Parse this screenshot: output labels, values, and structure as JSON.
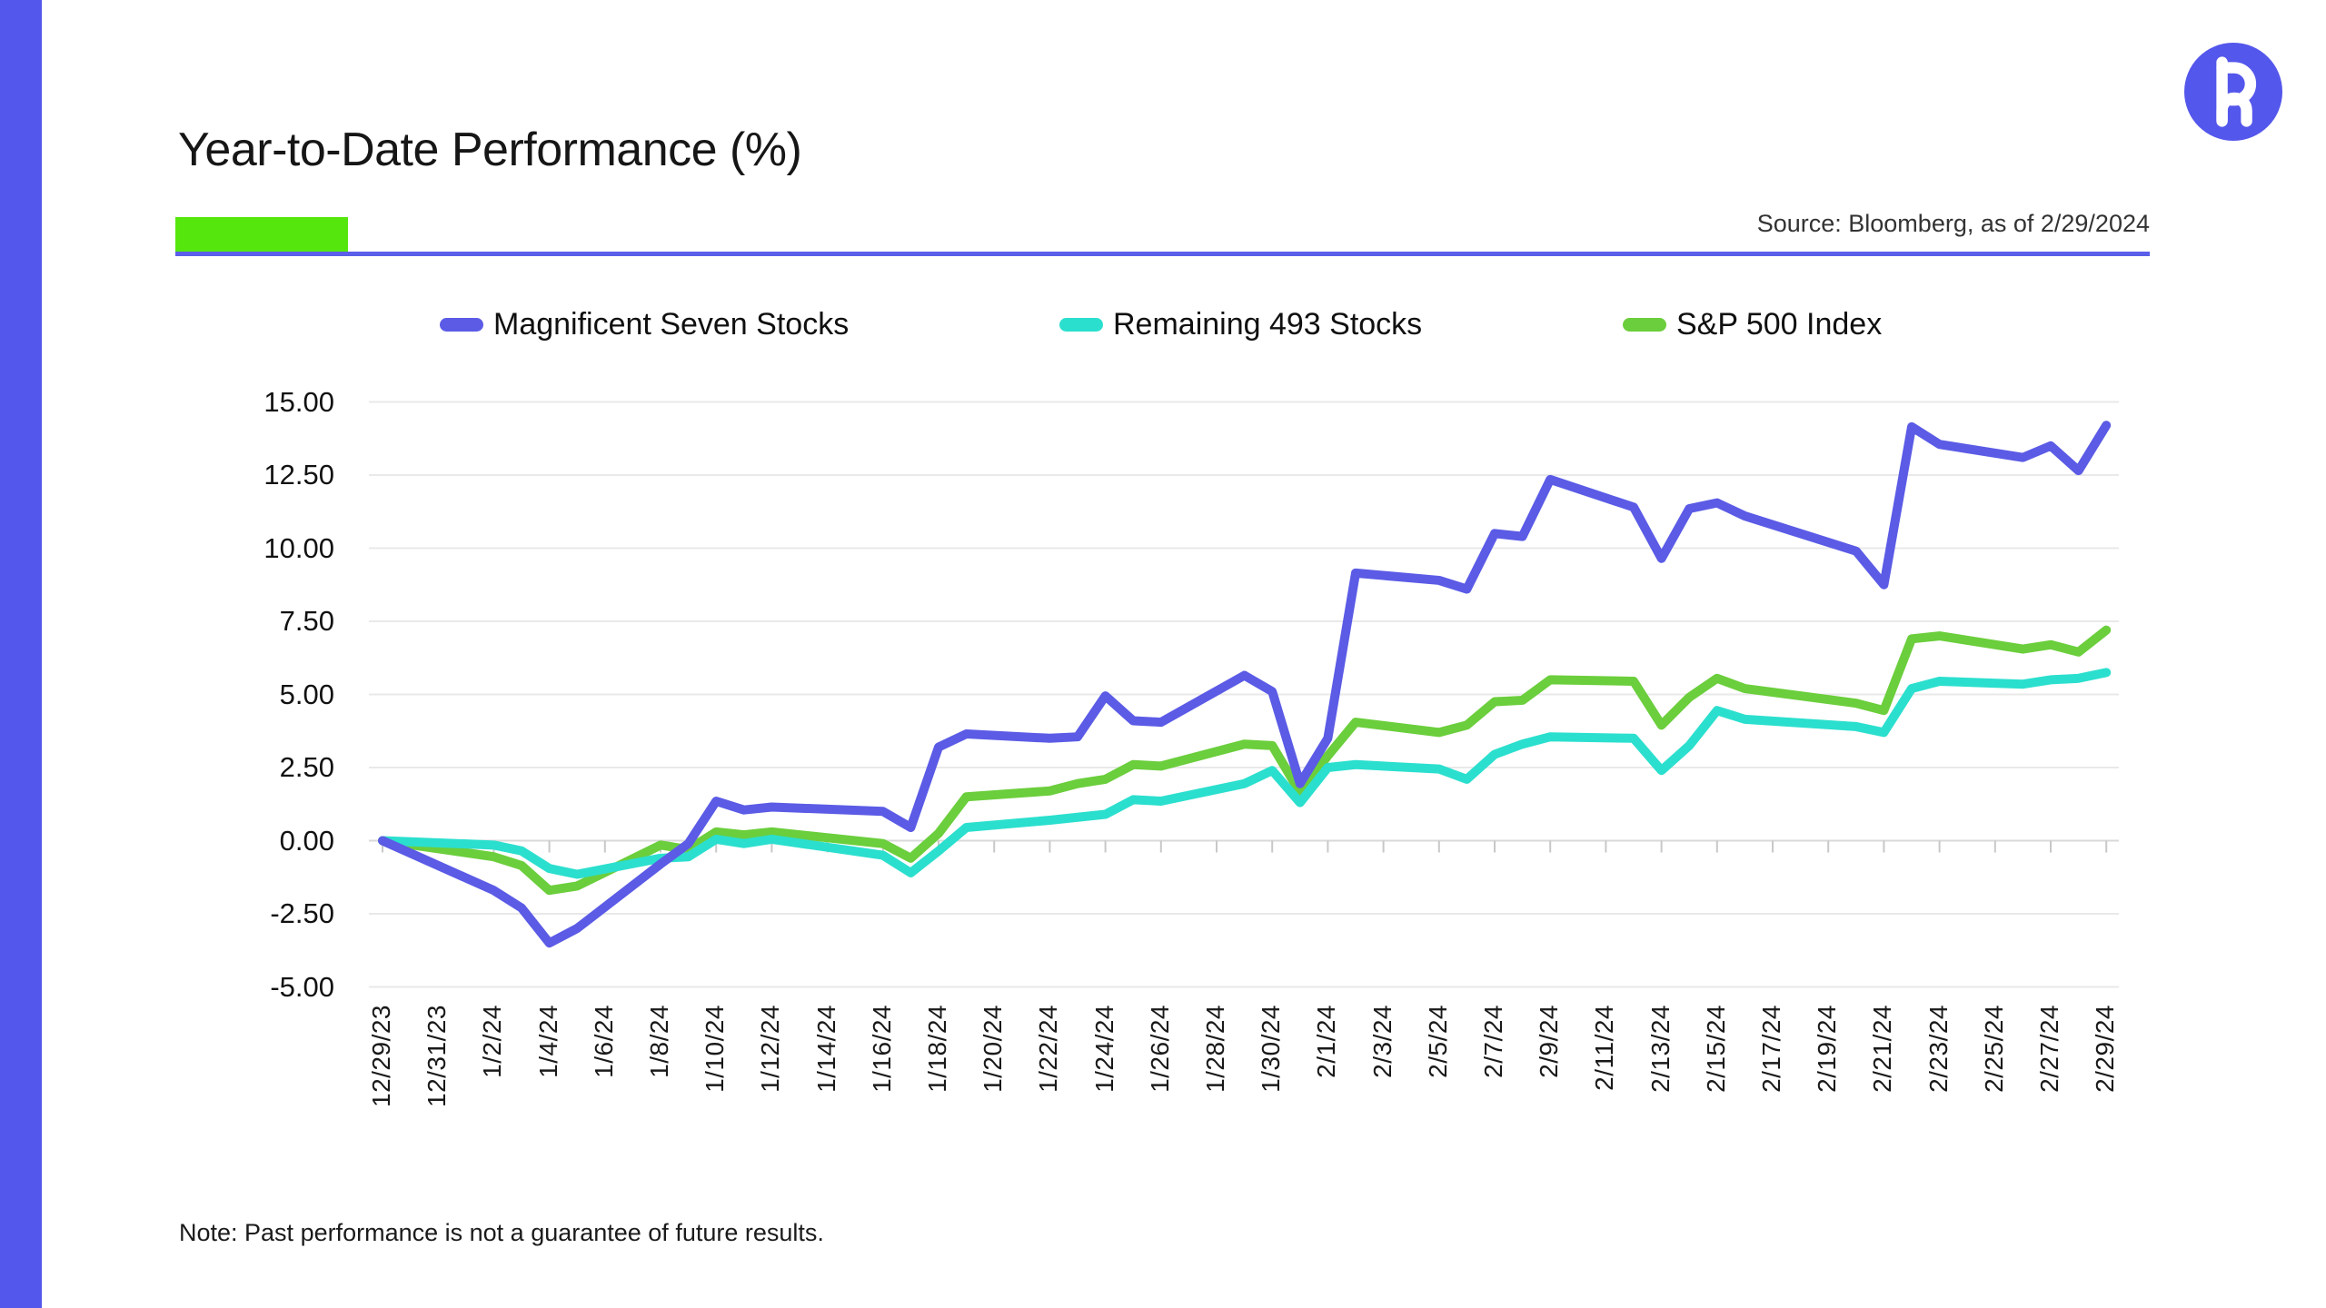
{
  "header": {
    "title": "Year-to-Date Performance (%)",
    "source": "Source: Bloomberg, as of 2/29/2024"
  },
  "footer": {
    "note": "Note: Past performance is not a guarantee of future results."
  },
  "logo": {
    "icon": "brand-monogram-R-icon",
    "background": "#5457EB",
    "foreground": "#ffffff"
  },
  "theme": {
    "left_bar_color": "#5457EB",
    "accent_green_bar": "#55E70D",
    "divider_color": "#5B5EE9",
    "gridline_color": "#e9e9e9",
    "zero_line_color": "#d9d9d9",
    "tick_color": "#c8c8c8",
    "background": "#ffffff"
  },
  "chart_data": {
    "type": "line",
    "title": "Year-to-Date Performance (%)",
    "xlabel": "",
    "ylabel": "",
    "ylim": [
      -5,
      15
    ],
    "grid": "horizontal light gray, tick marks below zero axis",
    "legend_position": "top",
    "yticks": [
      "15.00",
      "12.50",
      "10.00",
      "7.50",
      "5.00",
      "2.50",
      "0.00",
      "-2.50",
      "-5.00"
    ],
    "ytick_values": [
      15,
      12.5,
      10,
      7.5,
      5,
      2.5,
      0,
      -2.5,
      -5
    ],
    "xtick_labels": [
      "12/29/23",
      "12/31/23",
      "1/2/24",
      "1/4/24",
      "1/6/24",
      "1/8/24",
      "1/10/24",
      "1/12/24",
      "1/14/24",
      "1/16/24",
      "1/18/24",
      "1/20/24",
      "1/22/24",
      "1/24/24",
      "1/26/24",
      "1/28/24",
      "1/30/24",
      "2/1/24",
      "2/3/24",
      "2/5/24",
      "2/7/24",
      "2/9/24",
      "2/11/24",
      "2/13/24",
      "2/15/24",
      "2/17/24",
      "2/19/24",
      "2/21/24",
      "2/23/24",
      "2/25/24",
      "2/27/24",
      "2/29/24"
    ],
    "x_dates": [
      "12/29",
      "1/2",
      "1/3",
      "1/4",
      "1/5",
      "1/8",
      "1/9",
      "1/10",
      "1/11",
      "1/12",
      "1/16",
      "1/17",
      "1/18",
      "1/19",
      "1/22",
      "1/23",
      "1/24",
      "1/25",
      "1/26",
      "1/29",
      "1/30",
      "1/31",
      "2/1",
      "2/2",
      "2/5",
      "2/6",
      "2/7",
      "2/8",
      "2/9",
      "2/12",
      "2/13",
      "2/14",
      "2/15",
      "2/16",
      "2/20",
      "2/21",
      "2/22",
      "2/23",
      "2/26",
      "2/27",
      "2/28",
      "2/29"
    ],
    "x_day_offsets": [
      0,
      4,
      5,
      6,
      7,
      10,
      11,
      12,
      13,
      14,
      18,
      19,
      20,
      21,
      24,
      25,
      26,
      27,
      28,
      31,
      32,
      33,
      34,
      35,
      38,
      39,
      40,
      41,
      42,
      45,
      46,
      47,
      48,
      49,
      53,
      54,
      55,
      56,
      59,
      60,
      61,
      62
    ],
    "series": [
      {
        "name": "Magnificent Seven Stocks",
        "color": "#5B5BE6",
        "values": [
          0.0,
          -1.7,
          -2.3,
          -3.5,
          -3.0,
          -0.8,
          -0.1,
          1.35,
          1.05,
          1.15,
          1.0,
          0.45,
          3.2,
          3.65,
          3.5,
          3.55,
          4.95,
          4.1,
          4.05,
          5.65,
          5.1,
          1.95,
          3.5,
          9.15,
          8.9,
          8.6,
          10.5,
          10.4,
          12.35,
          11.4,
          9.65,
          11.35,
          11.55,
          11.1,
          9.9,
          8.75,
          14.15,
          13.55,
          13.1,
          13.5,
          12.65,
          14.2
        ]
      },
      {
        "name": "Remaining 493 Stocks",
        "color": "#2BDFCE",
        "values": [
          0.0,
          -0.15,
          -0.35,
          -0.95,
          -1.15,
          -0.6,
          -0.55,
          0.05,
          -0.1,
          0.05,
          -0.5,
          -1.1,
          -0.35,
          0.45,
          0.7,
          0.8,
          0.9,
          1.4,
          1.35,
          1.95,
          2.4,
          1.3,
          2.5,
          2.6,
          2.45,
          2.1,
          2.95,
          3.3,
          3.55,
          3.5,
          2.4,
          3.25,
          4.45,
          4.15,
          3.9,
          3.7,
          5.2,
          5.45,
          5.35,
          5.5,
          5.55,
          5.75
        ]
      },
      {
        "name": "S&P 500 Index",
        "color": "#6BCE3C",
        "values": [
          0.0,
          -0.55,
          -0.85,
          -1.7,
          -1.55,
          -0.15,
          -0.3,
          0.3,
          0.2,
          0.3,
          -0.1,
          -0.6,
          0.25,
          1.5,
          1.7,
          1.95,
          2.1,
          2.6,
          2.55,
          3.3,
          3.25,
          1.65,
          2.9,
          4.05,
          3.7,
          3.95,
          4.75,
          4.8,
          5.5,
          5.45,
          3.95,
          4.9,
          5.55,
          5.2,
          4.7,
          4.45,
          6.9,
          7.0,
          6.55,
          6.7,
          6.45,
          7.2
        ]
      }
    ],
    "legend_x_positions": [
      484,
      1166,
      1786
    ]
  }
}
